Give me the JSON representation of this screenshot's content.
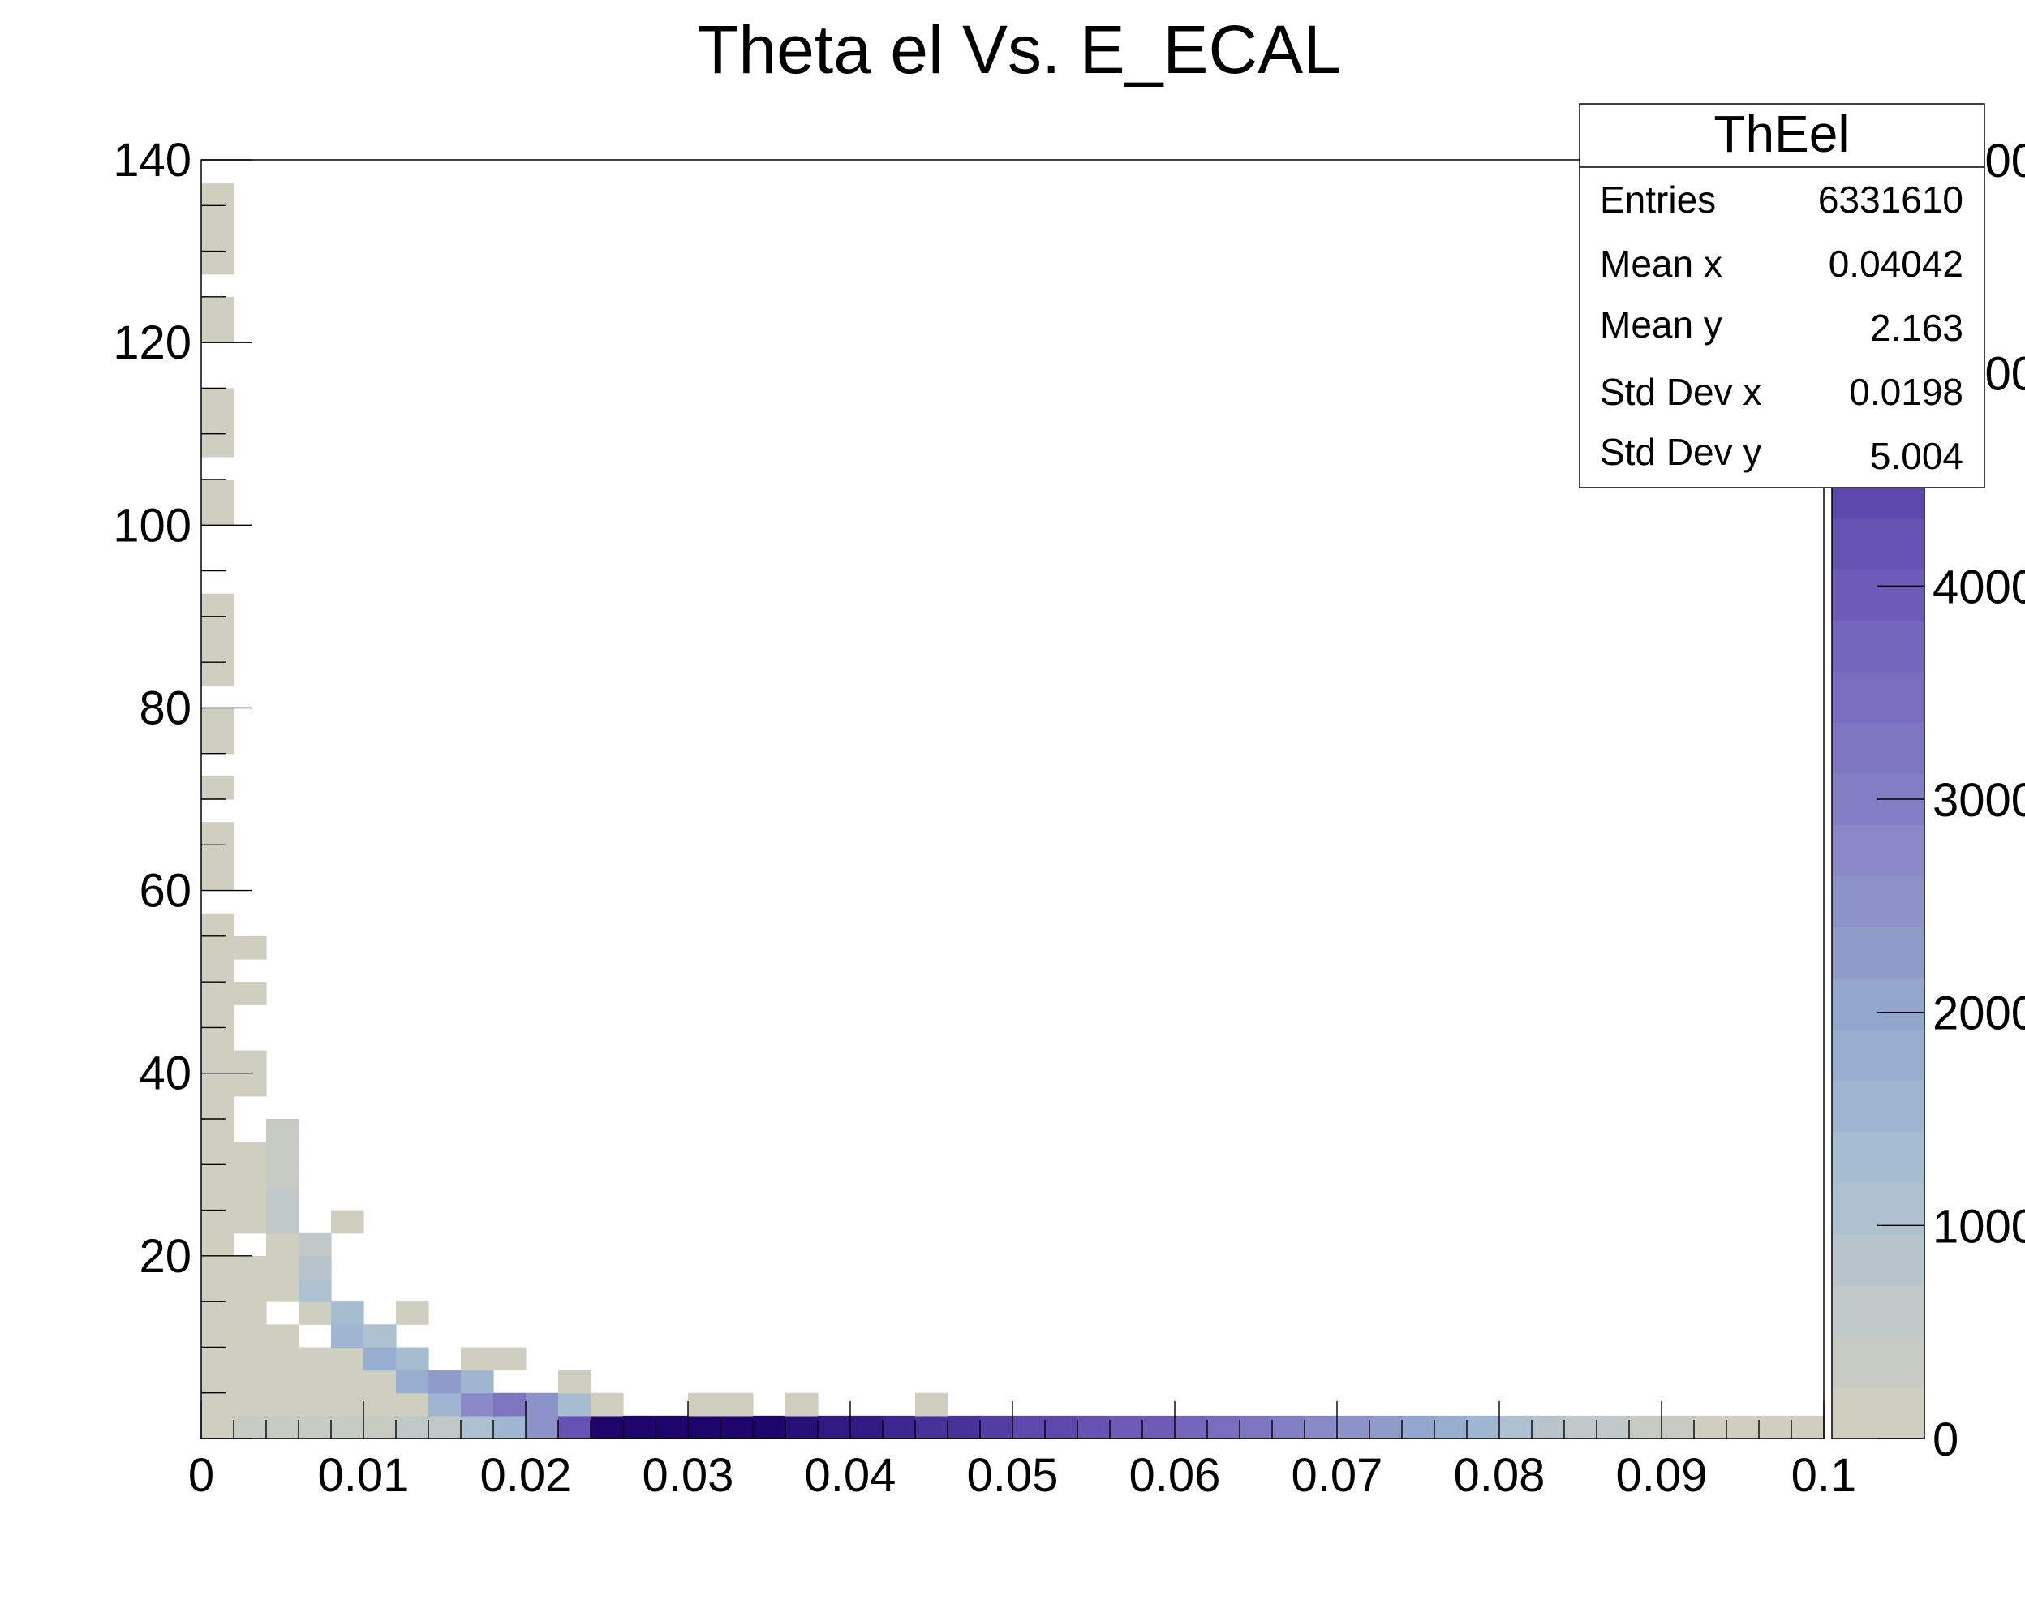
{
  "chart_data": {
    "type": "heatmap",
    "title": "Theta el Vs. E_ECAL",
    "xlabel": "",
    "ylabel": "",
    "xlim": [
      0,
      0.1
    ],
    "ylim": [
      0,
      140
    ],
    "x_ticks": [
      "0",
      "0.01",
      "0.02",
      "0.03",
      "0.04",
      "0.05",
      "0.06",
      "0.07",
      "0.08",
      "0.09",
      "0.1"
    ],
    "y_ticks": [
      "20",
      "40",
      "60",
      "80",
      "100",
      "120",
      "140"
    ],
    "colorbar": {
      "range": [
        0,
        6000
      ],
      "ticks": [
        "0",
        "1000",
        "2000",
        "3000",
        "4000",
        "5000",
        "6000"
      ],
      "colors": [
        "#cfcfc0",
        "#c8cbc4",
        "#c0c8c8",
        "#b7c4cc",
        "#aec1d0",
        "#a6bdd2",
        "#9eb6d2",
        "#97aed0",
        "#93a6cd",
        "#8f9cca",
        "#8b93c8",
        "#8889c6",
        "#847fc4",
        "#7f76c2",
        "#7a6dc0",
        "#7465bd",
        "#6d5bb8",
        "#6552b2",
        "#5c48ab",
        "#523ea3",
        "#47329a",
        "#3c2690",
        "#311a84",
        "#270f78",
        "#1e056c"
      ]
    },
    "x_bin_width": 0.002,
    "y_bin_width": 2.5,
    "front_cells": [
      [
        0.025,
        0.0,
        6000
      ],
      [
        0.026,
        0.0,
        5980
      ],
      [
        0.028,
        0.0,
        5960
      ],
      [
        0.03,
        0.0,
        5900
      ],
      [
        0.032,
        0.0,
        5850
      ],
      [
        0.034,
        0.0,
        5780
      ],
      [
        0.036,
        0.0,
        5650
      ],
      [
        0.038,
        0.0,
        5500
      ],
      [
        0.04,
        0.0,
        5300
      ],
      [
        0.042,
        0.0,
        5150
      ],
      [
        0.044,
        0.0,
        5000
      ],
      [
        0.046,
        0.0,
        4850
      ],
      [
        0.048,
        0.0,
        4700
      ],
      [
        0.05,
        0.0,
        4500
      ],
      [
        0.052,
        0.0,
        4350
      ],
      [
        0.054,
        0.0,
        4200
      ],
      [
        0.056,
        0.0,
        4050
      ],
      [
        0.058,
        0.0,
        3850
      ],
      [
        0.06,
        0.0,
        3700
      ],
      [
        0.062,
        0.0,
        3500
      ],
      [
        0.064,
        0.0,
        3300
      ],
      [
        0.066,
        0.0,
        3050
      ],
      [
        0.068,
        0.0,
        2850
      ],
      [
        0.07,
        0.0,
        2600
      ],
      [
        0.072,
        0.0,
        2350
      ],
      [
        0.074,
        0.0,
        2050
      ],
      [
        0.076,
        0.0,
        1750
      ],
      [
        0.078,
        0.0,
        1450
      ],
      [
        0.08,
        0.0,
        1150
      ],
      [
        0.082,
        0.0,
        900
      ],
      [
        0.084,
        0.0,
        650
      ],
      [
        0.086,
        0.0,
        480
      ],
      [
        0.088,
        0.0,
        350
      ],
      [
        0.09,
        0.0,
        250
      ],
      [
        0.092,
        0.0,
        180
      ],
      [
        0.094,
        0.0,
        120
      ],
      [
        0.096,
        0.0,
        80
      ],
      [
        0.098,
        0.0,
        50
      ],
      [
        0.022,
        0.0,
        4200
      ],
      [
        0.024,
        0.0,
        5200
      ],
      [
        0.02,
        0.0,
        2600
      ],
      [
        0.018,
        0.0,
        1600
      ],
      [
        0.016,
        0.0,
        1000
      ],
      [
        0.014,
        0.0,
        700
      ],
      [
        0.012,
        0.0,
        500
      ],
      [
        0.01,
        0.0,
        400
      ],
      [
        0.008,
        0.0,
        350
      ],
      [
        0.006,
        0.0,
        300
      ],
      [
        0.004,
        0.0,
        300
      ],
      [
        0.002,
        0.0,
        250
      ],
      [
        0.016,
        2.5,
        2800
      ],
      [
        0.018,
        2.5,
        3200
      ],
      [
        0.02,
        2.5,
        2600
      ],
      [
        0.022,
        2.5,
        1400
      ],
      [
        0.014,
        2.5,
        1500
      ],
      [
        0.012,
        5.0,
        1800
      ],
      [
        0.014,
        5.0,
        2200
      ],
      [
        0.016,
        5.0,
        1600
      ],
      [
        0.01,
        7.5,
        1700
      ],
      [
        0.012,
        7.5,
        1300
      ],
      [
        0.008,
        10.0,
        1500
      ],
      [
        0.01,
        10.0,
        1100
      ],
      [
        0.008,
        12.5,
        1200
      ],
      [
        0.007,
        15.0,
        1000
      ],
      [
        0.006,
        17.5,
        900
      ],
      [
        0.006,
        20.0,
        700
      ],
      [
        0.005,
        22.5,
        600
      ],
      [
        0.005,
        25.0,
        500
      ],
      [
        0.004,
        27.5,
        400
      ],
      [
        0.004,
        30.0,
        300
      ],
      [
        0.004,
        32.5,
        250
      ]
    ]
  },
  "stats_box": {
    "title": "ThEel",
    "rows": [
      {
        "label": "Entries",
        "value": "6331610"
      },
      {
        "label": "Mean x",
        "value": "0.04042"
      },
      {
        "label": "Mean y",
        "value": "2.163"
      },
      {
        "label": "Std Dev x",
        "value": "0.0198"
      },
      {
        "label": "Std Dev y",
        "value": "5.004"
      }
    ]
  }
}
